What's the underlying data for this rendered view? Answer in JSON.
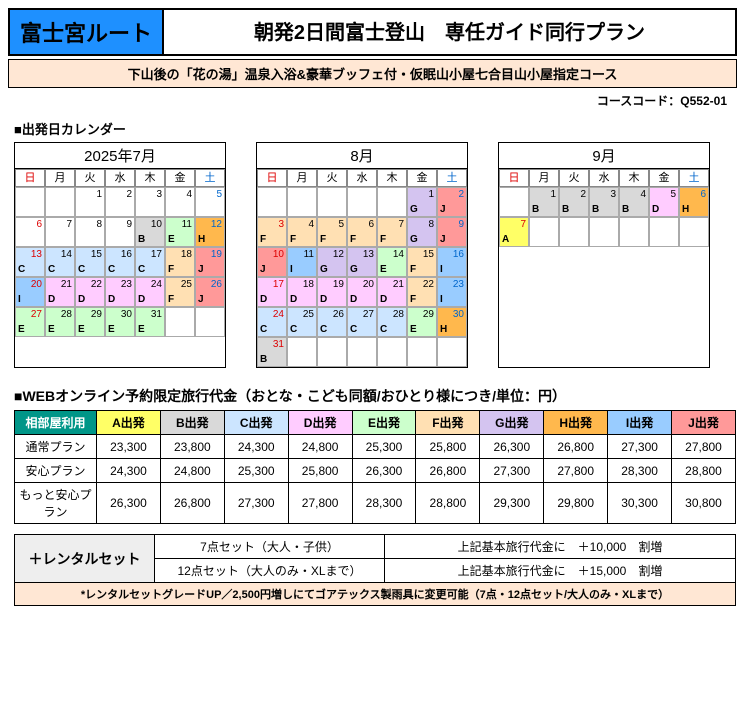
{
  "header": {
    "route": "富士宮ルート",
    "title": "朝発2日間富士登山　専任ガイド同行プラン",
    "subtitle": "下山後の「花の湯」温泉入浴&豪華ブッフェ付・仮眠山小屋七合目山小屋指定コース",
    "course_code_label": "コースコード：Q552-01"
  },
  "calendar_section_title": "■出発日カレンダー",
  "dow": [
    "日",
    "月",
    "火",
    "水",
    "木",
    "金",
    "土"
  ],
  "colors": {
    "A": "#ffff66",
    "B": "#d9d9d9",
    "C": "#cce5ff",
    "D": "#ffccff",
    "E": "#ccffcc",
    "F": "#ffe0b3",
    "G": "#d4c4f0",
    "H": "#ffb84d",
    "I": "#99ccff",
    "J": "#ff9999"
  },
  "months": [
    {
      "title": "2025年7月",
      "startDow": 2,
      "days": [
        {
          "n": 1
        },
        {
          "n": 2
        },
        {
          "n": 3
        },
        {
          "n": 4
        },
        {
          "n": 5
        },
        {
          "n": 6
        },
        {
          "n": 7
        },
        {
          "n": 8
        },
        {
          "n": 9
        },
        {
          "n": 10,
          "c": "B"
        },
        {
          "n": 11,
          "c": "E"
        },
        {
          "n": 12,
          "c": "H"
        },
        {
          "n": 13,
          "c": "C"
        },
        {
          "n": 14,
          "c": "C"
        },
        {
          "n": 15,
          "c": "C"
        },
        {
          "n": 16,
          "c": "C"
        },
        {
          "n": 17,
          "c": "C"
        },
        {
          "n": 18,
          "c": "F"
        },
        {
          "n": 19,
          "c": "J"
        },
        {
          "n": 20,
          "c": "I"
        },
        {
          "n": 21,
          "c": "D"
        },
        {
          "n": 22,
          "c": "D"
        },
        {
          "n": 23,
          "c": "D"
        },
        {
          "n": 24,
          "c": "D"
        },
        {
          "n": 25,
          "c": "F"
        },
        {
          "n": 26,
          "c": "J"
        },
        {
          "n": 27,
          "c": "E"
        },
        {
          "n": 28,
          "c": "E"
        },
        {
          "n": 29,
          "c": "E"
        },
        {
          "n": 30,
          "c": "E"
        },
        {
          "n": 31,
          "c": "E"
        }
      ]
    },
    {
      "title": "8月",
      "startDow": 5,
      "days": [
        {
          "n": 1,
          "c": "G"
        },
        {
          "n": 2,
          "c": "J"
        },
        {
          "n": 3,
          "c": "F"
        },
        {
          "n": 4,
          "c": "F"
        },
        {
          "n": 5,
          "c": "F"
        },
        {
          "n": 6,
          "c": "F"
        },
        {
          "n": 7,
          "c": "F"
        },
        {
          "n": 8,
          "c": "G"
        },
        {
          "n": 9,
          "c": "J"
        },
        {
          "n": 10,
          "c": "J"
        },
        {
          "n": 11,
          "c": "I"
        },
        {
          "n": 12,
          "c": "G"
        },
        {
          "n": 13,
          "c": "G"
        },
        {
          "n": 14,
          "c": "E"
        },
        {
          "n": 15,
          "c": "F"
        },
        {
          "n": 16,
          "c": "I"
        },
        {
          "n": 17,
          "c": "D"
        },
        {
          "n": 18,
          "c": "D"
        },
        {
          "n": 19,
          "c": "D"
        },
        {
          "n": 20,
          "c": "D"
        },
        {
          "n": 21,
          "c": "D"
        },
        {
          "n": 22,
          "c": "F"
        },
        {
          "n": 23,
          "c": "I"
        },
        {
          "n": 24,
          "c": "C"
        },
        {
          "n": 25,
          "c": "C"
        },
        {
          "n": 26,
          "c": "C"
        },
        {
          "n": 27,
          "c": "C"
        },
        {
          "n": 28,
          "c": "C"
        },
        {
          "n": 29,
          "c": "E"
        },
        {
          "n": 30,
          "c": "H"
        },
        {
          "n": 31,
          "c": "B"
        }
      ]
    },
    {
      "title": "9月",
      "startDow": 1,
      "days": [
        {
          "n": 1,
          "c": "B"
        },
        {
          "n": 2,
          "c": "B"
        },
        {
          "n": 3,
          "c": "B"
        },
        {
          "n": 4,
          "c": "B"
        },
        {
          "n": 5,
          "c": "D"
        },
        {
          "n": 6,
          "c": "H"
        },
        {
          "n": 7,
          "c": "A"
        }
      ]
    }
  ],
  "price_title": "■WEBオンライン予約限定旅行代金（おとな・こども同額/おひとり様につき/単位：円）",
  "price_header_label": "相部屋利用",
  "price_cols": [
    {
      "label": "A出発",
      "c": "A"
    },
    {
      "label": "B出発",
      "c": "B"
    },
    {
      "label": "C出発",
      "c": "C"
    },
    {
      "label": "D出発",
      "c": "D"
    },
    {
      "label": "E出発",
      "c": "E"
    },
    {
      "label": "F出発",
      "c": "F"
    },
    {
      "label": "G出発",
      "c": "G"
    },
    {
      "label": "H出発",
      "c": "H"
    },
    {
      "label": "I出発",
      "c": "I"
    },
    {
      "label": "J出発",
      "c": "J"
    }
  ],
  "price_rows": [
    {
      "name": "通常プラン",
      "v": [
        "23,300",
        "23,800",
        "24,300",
        "24,800",
        "25,300",
        "25,800",
        "26,300",
        "26,800",
        "27,300",
        "27,800"
      ]
    },
    {
      "name": "安心プラン",
      "v": [
        "24,300",
        "24,800",
        "25,300",
        "25,800",
        "26,300",
        "26,800",
        "27,300",
        "27,800",
        "28,300",
        "28,800"
      ]
    },
    {
      "name": "もっと安心プラン",
      "v": [
        "26,300",
        "26,800",
        "27,300",
        "27,800",
        "28,300",
        "28,800",
        "29,300",
        "29,800",
        "30,300",
        "30,800"
      ]
    }
  ],
  "rental": {
    "label": "＋レンタルセット",
    "rows": [
      {
        "c1": "7点セット（大人・子供）",
        "c2": "上記基本旅行代金に　＋10,000　割増"
      },
      {
        "c1": "12点セット（大人のみ・XLまで）",
        "c2": "上記基本旅行代金に　＋15,000　割増"
      }
    ],
    "note": "*レンタルセットグレードUP／2,500円増しにてゴアテックス製雨具に変更可能（7点・12点セット/大人のみ・XLまで）"
  }
}
